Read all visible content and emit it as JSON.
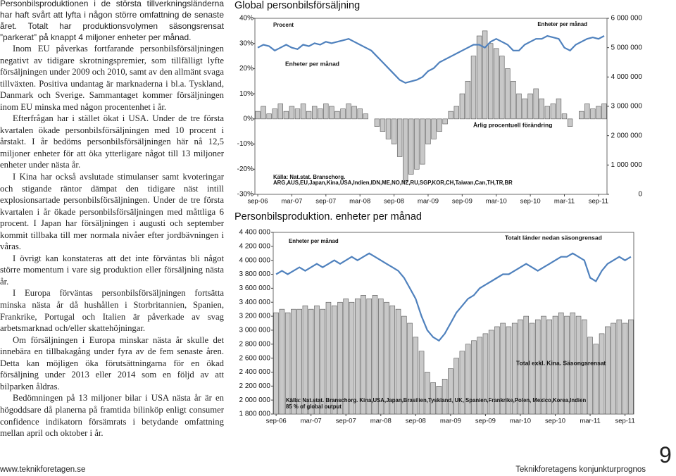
{
  "article": {
    "paragraphs": [
      "Personbilsproduktionen i de största tillverkningsländerna har haft svårt att lyfta i någon större omfattning de senaste året. Totalt har produktionsvolymen säsongsrensat ”parkerat” på knappt 4 miljoner enheter per månad.",
      "Inom EU påverkas fortfarande personbilsförsäljningen negativt av tidigare skrotningspremier, som tillfälligt lyfte försäljningen under 2009 och 2010, samt av den allmänt svaga tillväxten. Positiva undantag är marknaderna i bl.a. Tyskland, Danmark och Sverige. Sammantaget kommer försäljningen inom EU minska med någon procentenhet i år.",
      "Efterfrågan har i stället ökat i USA. Under de tre första kvartalen ökade personbilsförsäljningen med 10 procent i årstakt. I år bedöms personbilsförsäljningen här nå 12,5 miljoner enheter för att öka ytterligare något till 13 miljoner enheter under nästa år.",
      "I Kina har också avslutade stimulanser samt kvoteringar och stigande räntor dämpat den tidigare näst intill explosionsartade personbilsförsäljningen. Under de tre första kvartalen i år ökade personbilsförsäljningen med måttliga 6 procent. I Japan har försäljningen i augusti och september kommit tillbaka till mer normala nivåer efter jordbävningen i våras.",
      "I övrigt kan konstateras att det inte förväntas bli något större momentum i vare sig produktion eller försäljning nästa år.",
      "I Europa förväntas personbilsförsäljningen fortsätta minska nästa år då hushållen i Storbritannien, Spanien, Frankrike, Portugal och Italien är påverkade av svag arbetsmarknad och/eller skattehöjningar.",
      "Om försäljningen i Europa minskar nästa år skulle det innebära en tillbakagång under fyra av de fem senaste åren. Detta kan möjligen öka förutsättningarna för en ökad försäljning under 2013 eller 2014 som en följd av att bilparken åldras.",
      "Bedömningen på 13 miljoner bilar i USA nästa år är en högoddsare då planerna på framtida bilinköp enligt consumer confidence indikatorn försämrats i betydande omfattning mellan april och oktober i år."
    ]
  },
  "chart_data": [
    {
      "type": "bar-line",
      "title": "Global personbilsförsäljning",
      "y_label": "Procent",
      "y2_label": "Enheter per månad",
      "source": "Källa: Nat.stat. Branschorg.",
      "note": "ARG,AUS,EU,Japan,Kina,USA,Indien,IDN,ME,NO,NZ,RU,SGP,KOR,CH,Taiwan,Can,TH,TR,BR",
      "categories": [
        "sep-06",
        null,
        null,
        null,
        null,
        null,
        "mar-07",
        null,
        null,
        null,
        null,
        null,
        "sep-07",
        null,
        null,
        null,
        null,
        null,
        "mar-08",
        null,
        null,
        null,
        null,
        null,
        "sep-08",
        null,
        null,
        null,
        null,
        null,
        "mar-09",
        null,
        null,
        null,
        null,
        null,
        "sep-09",
        null,
        null,
        null,
        null,
        null,
        "mar-10",
        null,
        null,
        null,
        null,
        null,
        "sep-10",
        null,
        null,
        null,
        null,
        null,
        "mar-11",
        null,
        null,
        null,
        null,
        null,
        "sep-11",
        null
      ],
      "series": [
        {
          "name": "Årlig procentuell förändring",
          "kind": "bar",
          "axis": "y",
          "color": "#c8c8c8",
          "values": [
            3,
            5,
            2,
            4,
            6,
            3,
            5,
            4,
            6,
            3,
            5,
            4,
            6,
            5,
            3,
            4,
            6,
            5,
            4,
            2,
            0,
            -3,
            -5,
            -8,
            -10,
            -15,
            -25,
            -22,
            -20,
            -18,
            -10,
            -8,
            -5,
            -2,
            3,
            5,
            10,
            15,
            25,
            33,
            35,
            30,
            28,
            25,
            20,
            15,
            10,
            8,
            10,
            12,
            8,
            5,
            6,
            8,
            2,
            -3,
            0,
            3,
            6,
            4,
            5,
            6
          ]
        },
        {
          "name": "Enheter per månad",
          "kind": "line",
          "axis": "y2",
          "color": "#4f81bd",
          "values": [
            5000000,
            5100000,
            5050000,
            4900000,
            5000000,
            5100000,
            5000000,
            4950000,
            5100000,
            5050000,
            5150000,
            5100000,
            5200000,
            5150000,
            5200000,
            5250000,
            5300000,
            5200000,
            5100000,
            5000000,
            4900000,
            4700000,
            4500000,
            4300000,
            4100000,
            3900000,
            3800000,
            3850000,
            3900000,
            4000000,
            4200000,
            4300000,
            4500000,
            4600000,
            4700000,
            4800000,
            4900000,
            5000000,
            5100000,
            5100000,
            5000000,
            5200000,
            5300000,
            5200000,
            5100000,
            4900000,
            4900000,
            5100000,
            5200000,
            5300000,
            5300000,
            5400000,
            5350000,
            5300000,
            5000000,
            4900000,
            5100000,
            5200000,
            5300000,
            5350000,
            5300000,
            5400000
          ]
        }
      ],
      "ylim": [
        -30,
        40
      ],
      "yticks": [
        {
          "value": -30,
          "label": "-30%"
        },
        {
          "value": -20,
          "label": "-20%"
        },
        {
          "value": -10,
          "label": "-10%"
        },
        {
          "value": 0,
          "label": "0%"
        },
        {
          "value": 10,
          "label": "10%"
        },
        {
          "value": 20,
          "label": "20%"
        },
        {
          "value": 30,
          "label": "30%"
        },
        {
          "value": 40,
          "label": "40%"
        }
      ],
      "y2lim": [
        0,
        6000000
      ],
      "y2ticks": [
        0,
        {
          "value": 1000000,
          "label": "1 000 000"
        },
        {
          "value": 2000000,
          "label": "2 000 000"
        },
        {
          "value": 3000000,
          "label": "3 000 000"
        },
        {
          "value": 4000000,
          "label": "4 000 000"
        },
        {
          "value": 5000000,
          "label": "5 000 000"
        },
        {
          "value": 6000000,
          "label": "6 000 000"
        }
      ],
      "grid": false
    },
    {
      "type": "bar-line",
      "title": "Personbilsproduktion. enheter per månad",
      "y_label": "Enheter per månad",
      "source": "Källa: Nat.stat. Branschorg. Kina,USA,Japan,Brasilien,Tyskland, UK, Spanien,Frankrike,Polen, Mexico,Korea,Indien",
      "note": "85 % of global output",
      "categories": [
        "sep-06",
        null,
        null,
        null,
        null,
        null,
        "mar-07",
        null,
        null,
        null,
        null,
        null,
        "sep-07",
        null,
        null,
        null,
        null,
        null,
        "mar-08",
        null,
        null,
        null,
        null,
        null,
        "sep-08",
        null,
        null,
        null,
        null,
        null,
        "mar-09",
        null,
        null,
        null,
        null,
        null,
        "sep-09",
        null,
        null,
        null,
        null,
        null,
        "mar-10",
        null,
        null,
        null,
        null,
        null,
        "sep-10",
        null,
        null,
        null,
        null,
        null,
        "mar-11",
        null,
        null,
        null,
        null,
        null,
        "sep-11",
        null
      ],
      "series": [
        {
          "name": "Total exkl. Kina. Säsongsrensat",
          "kind": "bar",
          "axis": "y",
          "color": "#c8c8c8",
          "values": [
            3250000,
            3300000,
            3250000,
            3300000,
            3300000,
            3350000,
            3300000,
            3350000,
            3300000,
            3400000,
            3350000,
            3400000,
            3450000,
            3400000,
            3450000,
            3500000,
            3450000,
            3500000,
            3450000,
            3400000,
            3350000,
            3300000,
            3200000,
            3100000,
            2900000,
            2700000,
            2400000,
            2250000,
            2200000,
            2300000,
            2450000,
            2600000,
            2700000,
            2800000,
            2850000,
            2900000,
            2950000,
            3000000,
            3050000,
            3100000,
            3050000,
            3100000,
            3150000,
            3200000,
            3100000,
            3150000,
            3200000,
            3150000,
            3200000,
            3250000,
            3200000,
            3250000,
            3200000,
            3150000,
            2900000,
            2800000,
            2950000,
            3050000,
            3100000,
            3150000,
            3100000,
            3150000
          ]
        },
        {
          "name": "Totalt länder nedan säsongrensad",
          "kind": "line",
          "axis": "y",
          "color": "#4f81bd",
          "values": [
            3800000,
            3850000,
            3800000,
            3850000,
            3900000,
            3850000,
            3900000,
            3950000,
            3900000,
            3950000,
            4000000,
            3950000,
            4000000,
            4050000,
            4000000,
            4050000,
            4100000,
            4050000,
            4000000,
            3950000,
            3900000,
            3850000,
            3750000,
            3600000,
            3450000,
            3200000,
            3000000,
            2900000,
            2850000,
            2950000,
            3100000,
            3250000,
            3350000,
            3450000,
            3500000,
            3600000,
            3650000,
            3700000,
            3750000,
            3800000,
            3800000,
            3850000,
            3900000,
            3950000,
            3900000,
            3850000,
            3900000,
            3950000,
            4000000,
            4050000,
            4050000,
            4100000,
            4050000,
            4000000,
            3750000,
            3700000,
            3850000,
            3950000,
            4000000,
            4050000,
            4000000,
            4050000
          ]
        }
      ],
      "ylim": [
        1800000,
        4400000
      ],
      "yticks": [
        {
          "value": 1800000,
          "label": "1 800 000"
        },
        {
          "value": 2000000,
          "label": "2 000 000"
        },
        {
          "value": 2200000,
          "label": "2 200 000"
        },
        {
          "value": 2400000,
          "label": "2 400 000"
        },
        {
          "value": 2600000,
          "label": "2 600 000"
        },
        {
          "value": 2800000,
          "label": "2 800 000"
        },
        {
          "value": 3000000,
          "label": "3 000 000"
        },
        {
          "value": 3200000,
          "label": "3 200 000"
        },
        {
          "value": 3400000,
          "label": "3 400 000"
        },
        {
          "value": 3600000,
          "label": "3 600 000"
        },
        {
          "value": 3800000,
          "label": "3 800 000"
        },
        {
          "value": 4000000,
          "label": "4 000 000"
        },
        {
          "value": 4200000,
          "label": "4 200 000"
        },
        {
          "value": 4400000,
          "label": "4 400 000"
        }
      ],
      "grid": false
    }
  ],
  "footer": {
    "url": "www.teknikforetagen.se",
    "publication": "Teknikforetagens konjunkturprognos",
    "page_number": 9
  }
}
